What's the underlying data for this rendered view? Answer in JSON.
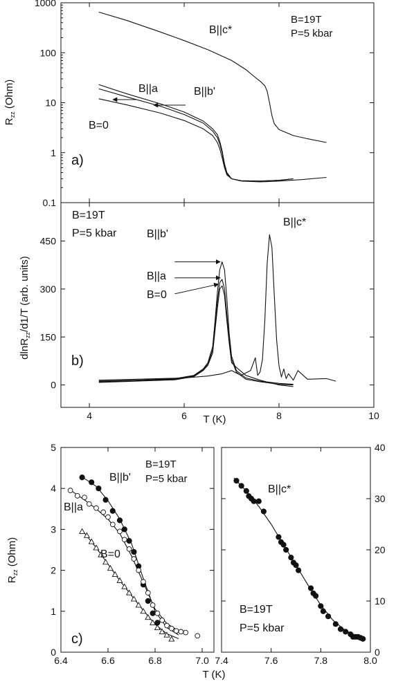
{
  "chart_data": [
    {
      "id": "a",
      "type": "line",
      "panel_label": "a)",
      "ylabel_main": "R",
      "ylabel_sub": "zz",
      "ylabel_unit": " (Ohm)",
      "yscale": "log",
      "xlim": [
        3.4,
        10
      ],
      "ylim": [
        0.1,
        1000
      ],
      "yticks": [
        {
          "v": 0.1,
          "label": "0.1"
        },
        {
          "v": 1,
          "label": "1"
        },
        {
          "v": 10,
          "label": "10"
        },
        {
          "v": 100,
          "label": "100"
        },
        {
          "v": 1000,
          "label": "1000"
        }
      ],
      "xticks": [
        4,
        6,
        8,
        10
      ],
      "annotations": [
        "B||c*",
        "B=19T",
        "P=5 kbar",
        "B||a",
        "B||b'",
        "B=0"
      ],
      "series": [
        {
          "name": "B||c*",
          "x": [
            4.2,
            4.8,
            5.5,
            6.0,
            6.5,
            7.0,
            7.3,
            7.5,
            7.6,
            7.7,
            7.75,
            7.8,
            7.85,
            7.9,
            8.0,
            8.3,
            8.6,
            9.0
          ],
          "y": [
            650,
            440,
            260,
            175,
            115,
            70,
            46,
            32,
            27,
            22,
            17,
            10,
            5.5,
            3.8,
            2.9,
            2.2,
            1.9,
            1.6
          ]
        },
        {
          "name": "B||b'",
          "x": [
            4.2,
            4.8,
            5.5,
            6.0,
            6.4,
            6.6,
            6.7,
            6.75,
            6.8,
            6.85,
            6.9,
            7.0,
            7.2,
            7.6,
            8.0,
            8.3
          ],
          "y": [
            23,
            15,
            9.5,
            6.5,
            4.3,
            3.0,
            2.3,
            1.7,
            1.1,
            0.6,
            0.4,
            0.3,
            0.275,
            0.27,
            0.28,
            0.3
          ]
        },
        {
          "name": "B||a",
          "x": [
            4.2,
            4.8,
            5.5,
            6.0,
            6.4,
            6.6,
            6.7,
            6.75,
            6.8,
            6.85,
            6.9,
            7.0,
            7.2,
            7.6,
            8.0,
            8.3
          ],
          "y": [
            19,
            13,
            8.5,
            5.8,
            3.9,
            2.7,
            2.0,
            1.5,
            1.0,
            0.55,
            0.38,
            0.3,
            0.275,
            0.27,
            0.28,
            0.3
          ]
        },
        {
          "name": "B=0",
          "x": [
            4.2,
            4.8,
            5.5,
            6.0,
            6.4,
            6.6,
            6.7,
            6.75,
            6.8,
            6.85,
            6.9,
            7.0,
            7.2,
            7.6,
            8.0,
            8.5,
            9.0
          ],
          "y": [
            12,
            9,
            6.2,
            4.4,
            3.0,
            2.2,
            1.6,
            1.2,
            0.8,
            0.5,
            0.36,
            0.3,
            0.27,
            0.26,
            0.27,
            0.29,
            0.32
          ]
        }
      ]
    },
    {
      "id": "b",
      "type": "line",
      "panel_label": "b)",
      "ylabel_main": "dlnR",
      "ylabel_sub": "zz",
      "ylabel_unit": "/d1/T (arb. units)",
      "xlabel": "T (K)",
      "xlim": [
        3.4,
        10
      ],
      "ylim": [
        -70,
        570
      ],
      "yticks": [
        0,
        150,
        300,
        450
      ],
      "xticks": [
        4,
        6,
        8,
        10
      ],
      "annotations": [
        "B=19T",
        "P=5 kbar",
        "B||b'",
        "B||c*",
        "B||a",
        "B=0"
      ],
      "series": [
        {
          "name": "B||c*",
          "x": [
            4.2,
            5.0,
            6.0,
            6.5,
            6.8,
            7.0,
            7.2,
            7.4,
            7.5,
            7.55,
            7.6,
            7.65,
            7.7,
            7.75,
            7.8,
            7.85,
            7.9,
            7.95,
            8.0,
            8.05,
            8.1,
            8.15,
            8.2,
            8.3,
            8.4,
            8.6,
            9.0,
            9.2
          ],
          "y": [
            15,
            18,
            22,
            28,
            35,
            45,
            30,
            45,
            85,
            30,
            40,
            80,
            200,
            380,
            470,
            430,
            280,
            140,
            60,
            25,
            50,
            20,
            35,
            15,
            45,
            18,
            20,
            12
          ]
        },
        {
          "name": "B||b'",
          "x": [
            4.2,
            5.0,
            5.8,
            6.2,
            6.4,
            6.5,
            6.6,
            6.65,
            6.7,
            6.75,
            6.8,
            6.85,
            6.9,
            6.95,
            7.0,
            7.1,
            7.3,
            7.6,
            8.0,
            8.3
          ],
          "y": [
            12,
            15,
            20,
            30,
            50,
            70,
            120,
            200,
            290,
            360,
            385,
            360,
            270,
            160,
            90,
            45,
            22,
            12,
            5,
            2
          ]
        },
        {
          "name": "B||a",
          "x": [
            4.2,
            5.0,
            5.8,
            6.2,
            6.4,
            6.5,
            6.6,
            6.65,
            6.7,
            6.75,
            6.8,
            6.85,
            6.9,
            6.95,
            7.0,
            7.1,
            7.3,
            7.6,
            8.0,
            8.3
          ],
          "y": [
            10,
            14,
            18,
            28,
            48,
            65,
            110,
            180,
            260,
            320,
            330,
            300,
            220,
            140,
            80,
            40,
            18,
            10,
            2,
            0
          ]
        },
        {
          "name": "B=0",
          "x": [
            4.2,
            5.0,
            5.8,
            6.2,
            6.4,
            6.5,
            6.6,
            6.65,
            6.7,
            6.75,
            6.8,
            6.85,
            6.9,
            6.95,
            7.0,
            7.1,
            7.3,
            7.6,
            8.0,
            8.3
          ],
          "y": [
            8,
            12,
            16,
            26,
            45,
            62,
            100,
            170,
            240,
            300,
            310,
            280,
            200,
            130,
            70,
            55,
            30,
            15,
            0,
            -5
          ]
        }
      ],
      "arrows": [
        {
          "x1": 5.8,
          "y1": 385,
          "x2": 6.76,
          "y2": 385
        },
        {
          "x1": 5.8,
          "y1": 335,
          "x2": 6.76,
          "y2": 335
        },
        {
          "x1": 5.8,
          "y1": 285,
          "x2": 6.72,
          "y2": 315
        }
      ]
    },
    {
      "id": "c-left",
      "type": "scatter",
      "panel_label": "c)",
      "ylabel_main": "R",
      "ylabel_sub": "zz",
      "ylabel_unit": " (Ohm)",
      "xlabel": "T (K)",
      "xlim": [
        6.4,
        7.05
      ],
      "ylim": [
        0,
        5
      ],
      "xticks": [
        {
          "v": 6.4,
          "label": "6.4"
        },
        {
          "v": 6.6,
          "label": "6.6"
        },
        {
          "v": 6.8,
          "label": "6.8"
        },
        {
          "v": 7.0,
          "label": "7.0"
        }
      ],
      "yticks": [
        0,
        1,
        2,
        3,
        4,
        5
      ],
      "annotations": [
        "B=19T",
        "P=5 kbar",
        "B||b'",
        "B||a",
        "B=0"
      ],
      "series": [
        {
          "name": "B||b'",
          "marker": "filled-circle",
          "x": [
            6.49,
            6.53,
            6.56,
            6.59,
            6.62,
            6.65,
            6.67,
            6.69,
            6.71,
            6.73,
            6.75,
            6.77,
            6.79,
            6.81
          ],
          "y": [
            4.27,
            4.15,
            4.0,
            3.72,
            3.45,
            3.22,
            3.0,
            2.72,
            2.45,
            2.1,
            1.65,
            1.25,
            0.95,
            0.72
          ],
          "fit_x": [
            6.49,
            6.55,
            6.6,
            6.65,
            6.7,
            6.75,
            6.8,
            6.85,
            6.9
          ],
          "fit_y": [
            4.28,
            4.05,
            3.7,
            3.25,
            2.65,
            1.8,
            1.0,
            0.6,
            0.42
          ]
        },
        {
          "name": "B||a",
          "marker": "open-circle",
          "x": [
            6.44,
            6.47,
            6.5,
            6.52,
            6.55,
            6.58,
            6.6,
            6.62,
            6.65,
            6.67,
            6.69,
            6.71,
            6.73,
            6.75,
            6.77,
            6.79,
            6.81,
            6.83,
            6.85,
            6.87,
            6.89,
            6.91,
            6.93,
            6.98
          ],
          "y": [
            3.95,
            3.82,
            3.78,
            3.62,
            3.52,
            3.42,
            3.3,
            3.12,
            2.95,
            2.75,
            2.52,
            2.28,
            2.0,
            1.72,
            1.45,
            1.15,
            0.95,
            0.78,
            0.65,
            0.58,
            0.52,
            0.5,
            0.48,
            0.4
          ],
          "fit_x": [
            6.44,
            6.5,
            6.55,
            6.6,
            6.65,
            6.7,
            6.75,
            6.8,
            6.85,
            6.9
          ],
          "fit_y": [
            3.96,
            3.72,
            3.5,
            3.25,
            2.9,
            2.35,
            1.7,
            1.05,
            0.7,
            0.52
          ]
        },
        {
          "name": "B=0",
          "marker": "open-triangle",
          "x": [
            6.49,
            6.51,
            6.53,
            6.55,
            6.57,
            6.59,
            6.61,
            6.63,
            6.65,
            6.67,
            6.69,
            6.71,
            6.73,
            6.75,
            6.77,
            6.79,
            6.81,
            6.83,
            6.85,
            6.87
          ],
          "y": [
            2.95,
            2.85,
            2.7,
            2.55,
            2.38,
            2.2,
            2.05,
            1.9,
            1.75,
            1.6,
            1.45,
            1.3,
            1.15,
            1.0,
            0.85,
            0.72,
            0.6,
            0.5,
            0.42,
            0.32
          ],
          "fit_x": [
            6.49,
            6.55,
            6.6,
            6.65,
            6.7,
            6.75,
            6.8,
            6.85,
            6.9
          ],
          "fit_y": [
            2.98,
            2.55,
            2.15,
            1.75,
            1.38,
            1.02,
            0.68,
            0.45,
            0.33
          ]
        }
      ]
    },
    {
      "id": "c-right",
      "type": "scatter",
      "xlabel": "T (K)",
      "xlim": [
        7.4,
        8.0
      ],
      "ylim": [
        0,
        40
      ],
      "xticks": [
        {
          "v": 7.4,
          "label": "7.4"
        },
        {
          "v": 7.6,
          "label": "7.6"
        },
        {
          "v": 7.8,
          "label": "7.8"
        },
        {
          "v": 8.0,
          "label": "8.0"
        }
      ],
      "yticks": [
        0,
        10,
        20,
        30,
        40
      ],
      "annotations": [
        "B||c*",
        "B=19T",
        "P=5 kbar"
      ],
      "series": [
        {
          "name": "B||c*",
          "marker": "filled-circle",
          "x": [
            7.46,
            7.48,
            7.5,
            7.51,
            7.52,
            7.53,
            7.55,
            7.57,
            7.63,
            7.64,
            7.65,
            7.66,
            7.68,
            7.69,
            7.7,
            7.71,
            7.76,
            7.77,
            7.78,
            7.8,
            7.81,
            7.83,
            7.86,
            7.88,
            7.9,
            7.92,
            7.93,
            7.94,
            7.95,
            7.96,
            7.97
          ],
          "y": [
            33.5,
            32.5,
            31.5,
            30.5,
            30,
            29.5,
            29.5,
            27.5,
            22.5,
            21.5,
            21,
            20,
            18.5,
            17.5,
            17,
            16,
            12.5,
            11.5,
            11,
            9,
            8,
            7,
            5.5,
            4.5,
            4,
            3.5,
            3,
            3,
            3,
            2.8,
            2.6
          ],
          "fit_x": [
            7.45,
            7.5,
            7.55,
            7.6,
            7.65,
            7.7,
            7.75,
            7.8,
            7.85,
            7.9,
            7.95,
            7.98
          ],
          "fit_y": [
            34,
            31.5,
            28.5,
            25,
            21,
            17,
            13,
            9.2,
            6.2,
            4.2,
            3.1,
            2.7
          ]
        }
      ]
    }
  ]
}
